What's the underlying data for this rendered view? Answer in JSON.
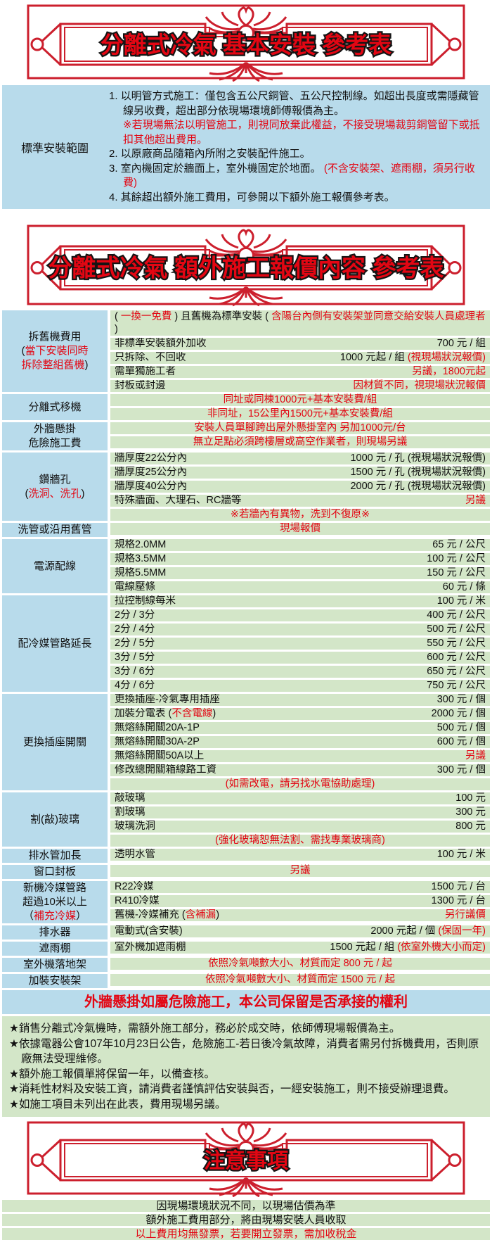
{
  "colors": {
    "frame_red": "#cc1f2d",
    "accent_red": "#e30613",
    "label_blue": "#b8dbeb",
    "row_green": "#d3e6c8",
    "text_black": "#111111"
  },
  "banners": {
    "basic": {
      "title": "分離式冷氣 基本安裝 參考表"
    },
    "extra": {
      "title": "分離式冷氣 額外施工報價內容 參考表"
    },
    "notice": {
      "title": "注意事項"
    }
  },
  "standard_install": {
    "label": "標準安裝範圍",
    "items": [
      {
        "hang": true,
        "segments": [
          {
            "c": "k",
            "t": "1. 以明管方式施工：僅包含五公尺銅管、五公尺控制線。如超出長度或需隱藏管線另收費，超出部分依現場環境師傅報價為主。"
          }
        ]
      },
      {
        "hang": false,
        "segments": [
          {
            "c": "r",
            "t": "※若現場無法以明管施工，則視同放棄此權益，不接受現場裁剪銅管留下或抵扣其他超出費用。"
          }
        ]
      },
      {
        "hang": true,
        "segments": [
          {
            "c": "k",
            "t": "2. 以原廠商品隨箱內所附之安裝配件施工。"
          }
        ]
      },
      {
        "hang": true,
        "segments": [
          {
            "c": "k",
            "t": "3. 室內機固定於牆面上，室外機固定於地面。 "
          },
          {
            "c": "r",
            "t": "(不含安裝架、遮雨棚，須另行收費)"
          }
        ]
      },
      {
        "hang": true,
        "segments": [
          {
            "c": "k",
            "t": "4. 其餘超出額外施工費用，可參閱以下額外施工報價參考表。"
          }
        ]
      }
    ]
  },
  "price_table": {
    "sections": [
      {
        "lines": [
          [
            {
              "c": "k",
              "t": "拆舊機費用"
            }
          ],
          [
            {
              "c": "k",
              "t": "("
            },
            {
              "c": "r",
              "t": "當下安裝同時"
            }
          ],
          [
            {
              "c": "r",
              "t": "拆除整組舊機"
            },
            {
              "c": "k",
              "t": ")"
            }
          ]
        ],
        "rows": [
          {
            "wide": [
              {
                "c": "k",
                "t": "( "
              },
              {
                "c": "r",
                "t": "一換一免費"
              },
              {
                "c": "k",
                "t": " ) 且舊機為標準安裝 ( "
              },
              {
                "c": "r",
                "t": "含陽台內側有安裝架並同意交給安裝人員處理者"
              },
              {
                "c": "k",
                "t": " )"
              }
            ]
          },
          {
            "label": [
              {
                "c": "k",
                "t": "非標準安裝額外加收"
              }
            ],
            "value": [
              {
                "c": "k",
                "t": "700 元 / 組"
              }
            ]
          },
          {
            "label": [
              {
                "c": "k",
                "t": "只拆除、不回收"
              }
            ],
            "value": [
              {
                "c": "k",
                "t": "1000 元起 / 組 "
              },
              {
                "c": "r",
                "t": "(視現場狀況報價)"
              }
            ]
          },
          {
            "label": [
              {
                "c": "k",
                "t": "需單獨施工者"
              }
            ],
            "value": [
              {
                "c": "r",
                "t": "另議，1800元起"
              }
            ]
          },
          {
            "label": [
              {
                "c": "k",
                "t": "封板或封邊"
              }
            ],
            "value": [
              {
                "c": "r",
                "t": "因材質不同，視現場狀況報價"
              }
            ]
          }
        ]
      },
      {
        "lines": [
          [
            {
              "c": "k",
              "t": "分離式移機"
            }
          ]
        ],
        "rows": [
          {
            "center": [
              {
                "c": "r",
                "t": "同址或同棟1000元+基本安裝費/組"
              }
            ]
          },
          {
            "center": [
              {
                "c": "r",
                "t": "非同址，15公里內1500元+基本安裝費/組"
              }
            ]
          }
        ]
      },
      {
        "lines": [
          [
            {
              "c": "k",
              "t": "外牆懸掛"
            }
          ],
          [
            {
              "c": "k",
              "t": "危險施工費"
            }
          ]
        ],
        "rows": [
          {
            "center": [
              {
                "c": "r",
                "t": "安裝人員單腳跨出屋外懸掛室內 另加1000元/台"
              }
            ]
          },
          {
            "center": [
              {
                "c": "r",
                "t": "無立足點必須跨樓層或高空作業者，則現場另議"
              }
            ]
          }
        ]
      },
      {
        "lines": [
          [
            {
              "c": "k",
              "t": "鑽牆孔"
            }
          ],
          [
            {
              "c": "k",
              "t": "("
            },
            {
              "c": "r",
              "t": "洗洞、洗孔"
            },
            {
              "c": "k",
              "t": ")"
            }
          ]
        ],
        "rows": [
          {
            "label": [
              {
                "c": "k",
                "t": "牆厚度22公分內"
              }
            ],
            "value": [
              {
                "c": "k",
                "t": "1000 元 / 孔 (視現場狀況報價)"
              }
            ]
          },
          {
            "label": [
              {
                "c": "k",
                "t": "牆厚度25公分內"
              }
            ],
            "value": [
              {
                "c": "k",
                "t": "1500 元 / 孔 (視現場狀況報價)"
              }
            ]
          },
          {
            "label": [
              {
                "c": "k",
                "t": "牆厚度40公分內"
              }
            ],
            "value": [
              {
                "c": "k",
                "t": "2000 元 / 孔 (視現場狀況報價)"
              }
            ]
          },
          {
            "label": [
              {
                "c": "k",
                "t": "特殊牆面、大理石、RC牆等"
              }
            ],
            "value": [
              {
                "c": "r",
                "t": "另議"
              }
            ]
          },
          {
            "center": [
              {
                "c": "r",
                "t": "※若牆內有異物，洗到不復原※"
              }
            ]
          }
        ]
      },
      {
        "lines": [
          [
            {
              "c": "k",
              "t": "洗管或沿用舊管"
            }
          ]
        ],
        "rows": [
          {
            "center": [
              {
                "c": "r",
                "t": "現場報價"
              }
            ]
          }
        ]
      },
      {
        "lines": [
          [
            {
              "c": "k",
              "t": "電源配線"
            }
          ]
        ],
        "rows": [
          {
            "label": [
              {
                "c": "k",
                "t": "規格2.0MM"
              }
            ],
            "value": [
              {
                "c": "k",
                "t": "65 元 / 公尺"
              }
            ]
          },
          {
            "label": [
              {
                "c": "k",
                "t": "規格3.5MM"
              }
            ],
            "value": [
              {
                "c": "k",
                "t": "100 元 / 公尺"
              }
            ]
          },
          {
            "label": [
              {
                "c": "k",
                "t": "規格5.5MM"
              }
            ],
            "value": [
              {
                "c": "k",
                "t": "150 元 / 公尺"
              }
            ]
          },
          {
            "label": [
              {
                "c": "k",
                "t": "電線壓條"
              }
            ],
            "value": [
              {
                "c": "k",
                "t": "60 元 / 條"
              }
            ]
          }
        ]
      },
      {
        "lines": [
          [
            {
              "c": "k",
              "t": "配冷媒管路延長"
            }
          ]
        ],
        "rows": [
          {
            "label": [
              {
                "c": "k",
                "t": "拉控制線每米"
              }
            ],
            "value": [
              {
                "c": "k",
                "t": "100 元 / 米"
              }
            ]
          },
          {
            "label": [
              {
                "c": "k",
                "t": "2分 / 3分"
              }
            ],
            "value": [
              {
                "c": "k",
                "t": "400 元 / 公尺"
              }
            ]
          },
          {
            "label": [
              {
                "c": "k",
                "t": "2分 / 4分"
              }
            ],
            "value": [
              {
                "c": "k",
                "t": "500 元 / 公尺"
              }
            ]
          },
          {
            "label": [
              {
                "c": "k",
                "t": "2分 / 5分"
              }
            ],
            "value": [
              {
                "c": "k",
                "t": "550 元 / 公尺"
              }
            ]
          },
          {
            "label": [
              {
                "c": "k",
                "t": "3分 / 5分"
              }
            ],
            "value": [
              {
                "c": "k",
                "t": "600 元 / 公尺"
              }
            ]
          },
          {
            "label": [
              {
                "c": "k",
                "t": "3分 / 6分"
              }
            ],
            "value": [
              {
                "c": "k",
                "t": "650 元 / 公尺"
              }
            ]
          },
          {
            "label": [
              {
                "c": "k",
                "t": "4分 / 6分"
              }
            ],
            "value": [
              {
                "c": "k",
                "t": "750 元 / 公尺"
              }
            ]
          }
        ]
      },
      {
        "lines": [
          [
            {
              "c": "k",
              "t": "更換插座開關"
            }
          ]
        ],
        "rows": [
          {
            "label": [
              {
                "c": "k",
                "t": "更換插座-冷氣專用插座"
              }
            ],
            "value": [
              {
                "c": "k",
                "t": "300 元 / 個"
              }
            ]
          },
          {
            "label": [
              {
                "c": "k",
                "t": "加裝分電表 ("
              },
              {
                "c": "r",
                "t": "不含電線"
              },
              {
                "c": "k",
                "t": ")"
              }
            ],
            "value": [
              {
                "c": "k",
                "t": "2000 元 / 個"
              }
            ]
          },
          {
            "label": [
              {
                "c": "k",
                "t": "無熔絲開關20A-1P"
              }
            ],
            "value": [
              {
                "c": "k",
                "t": "500 元 / 個"
              }
            ]
          },
          {
            "label": [
              {
                "c": "k",
                "t": "無熔絲開關30A-2P"
              }
            ],
            "value": [
              {
                "c": "k",
                "t": "600 元 / 個"
              }
            ]
          },
          {
            "label": [
              {
                "c": "k",
                "t": "無熔絲開關50A以上"
              }
            ],
            "value": [
              {
                "c": "r",
                "t": "另議"
              }
            ]
          },
          {
            "label": [
              {
                "c": "k",
                "t": "修改總開關箱線路工資"
              }
            ],
            "value": [
              {
                "c": "k",
                "t": "300 元 / 個"
              }
            ]
          },
          {
            "center": [
              {
                "c": "r",
                "t": "(如需改電，請另找水電協助處理)"
              }
            ]
          }
        ]
      },
      {
        "lines": [
          [
            {
              "c": "k",
              "t": "割(敲)玻璃"
            }
          ]
        ],
        "rows": [
          {
            "label": [
              {
                "c": "k",
                "t": "敲玻璃"
              }
            ],
            "value": [
              {
                "c": "k",
                "t": "100 元"
              }
            ]
          },
          {
            "label": [
              {
                "c": "k",
                "t": "割玻璃"
              }
            ],
            "value": [
              {
                "c": "k",
                "t": "300 元"
              }
            ]
          },
          {
            "label": [
              {
                "c": "k",
                "t": "玻璃洗洞"
              }
            ],
            "value": [
              {
                "c": "k",
                "t": "800 元"
              }
            ]
          },
          {
            "center": [
              {
                "c": "r",
                "t": "(強化玻璃恕無法割、需找專業玻璃商)"
              }
            ]
          }
        ]
      },
      {
        "lines": [
          [
            {
              "c": "k",
              "t": "排水管加長"
            }
          ]
        ],
        "rows": [
          {
            "label": [
              {
                "c": "k",
                "t": "透明水管"
              }
            ],
            "value": [
              {
                "c": "k",
                "t": "100 元 / 米"
              }
            ]
          }
        ]
      },
      {
        "lines": [
          [
            {
              "c": "k",
              "t": "窗口封板"
            }
          ]
        ],
        "rows": [
          {
            "center": [
              {
                "c": "r",
                "t": "另議"
              }
            ]
          }
        ]
      },
      {
        "lines": [
          [
            {
              "c": "k",
              "t": "新機冷媒管路"
            }
          ],
          [
            {
              "c": "k",
              "t": "超過10米以上"
            }
          ],
          [
            {
              "c": "k",
              "t": "（"
            },
            {
              "c": "r",
              "t": "補充冷媒"
            },
            {
              "c": "k",
              "t": "）"
            }
          ]
        ],
        "rows": [
          {
            "label": [
              {
                "c": "k",
                "t": "R22冷媒"
              }
            ],
            "value": [
              {
                "c": "k",
                "t": "1500 元 / 台"
              }
            ]
          },
          {
            "label": [
              {
                "c": "k",
                "t": "R410冷媒"
              }
            ],
            "value": [
              {
                "c": "k",
                "t": "1300 元 / 台"
              }
            ]
          },
          {
            "label": [
              {
                "c": "k",
                "t": "舊機-冷媒補充 ("
              },
              {
                "c": "r",
                "t": "含補漏"
              },
              {
                "c": "k",
                "t": ")"
              }
            ],
            "value": [
              {
                "c": "r",
                "t": "另行議價"
              }
            ]
          }
        ]
      },
      {
        "lines": [
          [
            {
              "c": "k",
              "t": "排水器"
            }
          ]
        ],
        "rows": [
          {
            "label": [
              {
                "c": "k",
                "t": "電動式(含安裝)"
              }
            ],
            "value": [
              {
                "c": "k",
                "t": "2000 元起 / 個 "
              },
              {
                "c": "r",
                "t": "(保固一年)"
              }
            ]
          }
        ]
      },
      {
        "lines": [
          [
            {
              "c": "k",
              "t": "遮雨棚"
            }
          ]
        ],
        "rows": [
          {
            "label": [
              {
                "c": "k",
                "t": "室外機加遮雨棚"
              }
            ],
            "value": [
              {
                "c": "k",
                "t": "1500 元起 / 組 "
              },
              {
                "c": "r",
                "t": "(依室外機大小而定)"
              }
            ]
          }
        ]
      },
      {
        "lines": [
          [
            {
              "c": "k",
              "t": "室外機落地架"
            }
          ]
        ],
        "rows": [
          {
            "center": [
              {
                "c": "r",
                "t": "依照冷氣噸數大小、材質而定 800 元 / 起"
              }
            ]
          }
        ]
      },
      {
        "lines": [
          [
            {
              "c": "k",
              "t": "加裝安裝架"
            }
          ]
        ],
        "rows": [
          {
            "center": [
              {
                "c": "r",
                "t": "依照冷氣噸數大小、材質而定 1500 元 / 起"
              }
            ]
          }
        ]
      }
    ]
  },
  "hazard_note": "外牆懸掛如屬危險施工，本公司保留是否承接的權利",
  "notes": [
    "★銷售分離式冷氣機時，需額外施工部分，務必於成交時，依師傅現場報價為主。",
    "★依據電器公會107年10月23日公告，危險施工-若日後冷氣故障，消費者需另付拆機費用，否則原廠無法受理維修。",
    "★額外施工報價單將保留一年，以備查核。",
    "★消耗性材料及安裝工資，請消費者謹慎評估安裝與否，一經安裝施工，則不接受辦理退費。",
    "★如施工項目未列出在此表，費用現場另議。"
  ],
  "footer_rows": [
    {
      "c": "k",
      "t": "因現場環境狀況不同，以現場估價為準"
    },
    {
      "c": "k",
      "t": "額外施工費用部分，將由現場安裝人員收取"
    },
    {
      "c": "r",
      "t": "以上費用均無發票，若要開立發票，需加收稅金"
    }
  ]
}
